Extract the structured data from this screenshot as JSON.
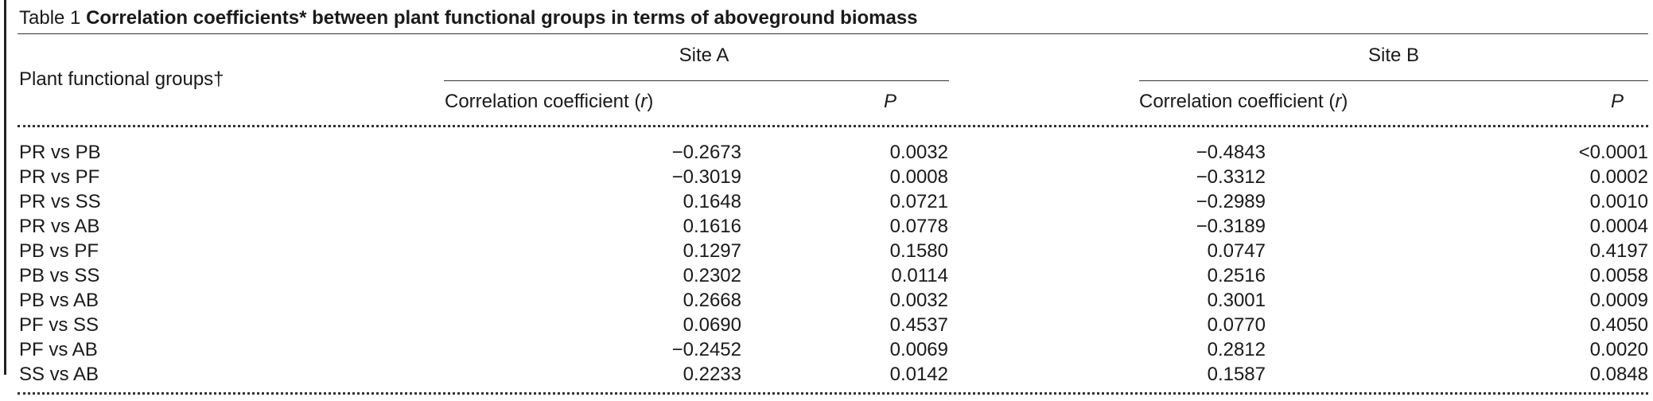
{
  "table": {
    "label": "Table 1",
    "title": "Correlation coefficients* between plant functional groups in terms of aboveground biomass",
    "row_header": "Plant functional groups†",
    "sites": [
      {
        "name": "Site A",
        "col_r": "Correlation coefficient (",
        "col_r_sym": "r",
        "col_r_close": ")",
        "col_p": "P"
      },
      {
        "name": "Site B",
        "col_r": "Correlation coefficient (",
        "col_r_sym": "r",
        "col_r_close": ")",
        "col_p": "P"
      }
    ],
    "rows": [
      {
        "group": "PR vs PB",
        "a_r": "−0.2673",
        "a_p": "0.0032",
        "b_r": "−0.4843",
        "b_p": "<0.0001"
      },
      {
        "group": "PR vs PF",
        "a_r": "−0.3019",
        "a_p": "0.0008",
        "b_r": "−0.3312",
        "b_p": "0.0002"
      },
      {
        "group": "PR vs SS",
        "a_r": "0.1648",
        "a_p": "0.0721",
        "b_r": "−0.2989",
        "b_p": "0.0010"
      },
      {
        "group": "PR vs AB",
        "a_r": "0.1616",
        "a_p": "0.0778",
        "b_r": "−0.3189",
        "b_p": "0.0004"
      },
      {
        "group": "PB vs PF",
        "a_r": "0.1297",
        "a_p": "0.1580",
        "b_r": "0.0747",
        "b_p": "0.4197"
      },
      {
        "group": "PB vs SS",
        "a_r": "0.2302",
        "a_p": "0.0114",
        "b_r": "0.2516",
        "b_p": "0.0058"
      },
      {
        "group": "PB vs AB",
        "a_r": "0.2668",
        "a_p": "0.0032",
        "b_r": "0.3001",
        "b_p": "0.0009"
      },
      {
        "group": "PF vs SS",
        "a_r": "0.0690",
        "a_p": "0.4537",
        "b_r": "0.0770",
        "b_p": "0.4050"
      },
      {
        "group": "PF vs AB",
        "a_r": "−0.2452",
        "a_p": "0.0069",
        "b_r": "0.2812",
        "b_p": "0.0020"
      },
      {
        "group": "SS vs AB",
        "a_r": "0.2233",
        "a_p": "0.0142",
        "b_r": "0.1587",
        "b_p": "0.0848"
      }
    ]
  }
}
